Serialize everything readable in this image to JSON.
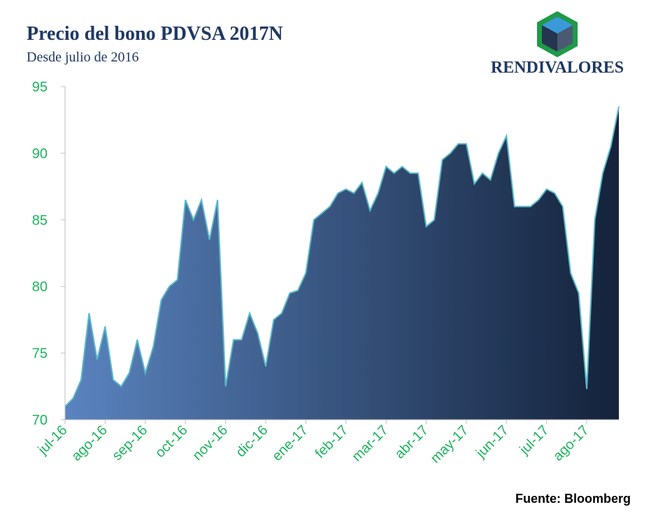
{
  "chart_data": {
    "type": "area",
    "title": "Precio del bono PDVSA 2017N",
    "subtitle": "Desde julio de 2016",
    "logo": "RENDIVALORES",
    "source": "Fuente: Bloomberg",
    "categories": [
      "jul-16",
      null,
      null,
      null,
      null,
      "ago-16",
      null,
      null,
      null,
      null,
      "sep-16",
      null,
      null,
      null,
      null,
      "oct-16",
      null,
      null,
      null,
      null,
      "nov-16",
      null,
      null,
      null,
      null,
      "dic-16",
      null,
      null,
      null,
      null,
      "ene-17",
      null,
      null,
      null,
      null,
      "feb-17",
      null,
      null,
      null,
      null,
      "mar-17",
      null,
      null,
      null,
      null,
      "abr-17",
      null,
      null,
      null,
      null,
      "may-17",
      null,
      null,
      null,
      null,
      "jun-17",
      null,
      null,
      null,
      null,
      "jul-17",
      null,
      null,
      null,
      null,
      "ago-17",
      null,
      null,
      null,
      null
    ],
    "values": [
      71,
      71.6,
      73,
      78,
      74.5,
      77,
      73,
      72.5,
      73.5,
      76,
      73.5,
      75.5,
      79,
      80,
      80.5,
      86.5,
      85,
      86.5,
      83.5,
      86.5,
      72.5,
      76,
      76,
      78,
      76.5,
      74,
      77.5,
      78,
      79.5,
      79.7,
      81,
      85,
      85.5,
      86,
      87,
      87.3,
      87,
      87.8,
      85.7,
      87,
      89,
      88.5,
      89,
      88.5,
      88.5,
      84.5,
      85,
      89.5,
      90,
      90.7,
      90.7,
      87.7,
      88.5,
      88,
      90,
      91.3,
      86,
      86,
      86,
      86.5,
      87.3,
      87,
      86,
      81,
      79.5,
      72.3,
      85,
      88.5,
      90.5,
      93.5
    ],
    "color": "#5bb8c8",
    "fill_gradient": [
      "#5a84c0",
      "#14223a"
    ],
    "ylim": [
      70,
      95
    ],
    "yticks": [
      70,
      75,
      80,
      85,
      90,
      95
    ],
    "grid": false
  }
}
